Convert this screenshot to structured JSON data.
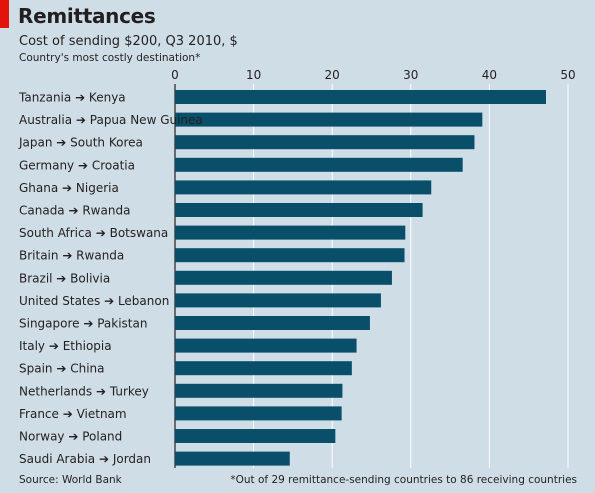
{
  "header": {
    "title": "Remittances",
    "subtitle": "Cost of sending $200, Q3 2010, $",
    "note": "Country's most costly destination*"
  },
  "footer": {
    "source": "Source: World Bank",
    "footnote": "*Out of 29 remittance-sending countries to 86 receiving countries"
  },
  "colors": {
    "background": "#cfdde6",
    "bar": "#0a4f6a",
    "accent": "#e3120b",
    "grid": "#ffffff"
  },
  "chart_data": {
    "type": "bar",
    "orientation": "horizontal",
    "categories": [
      "Tanzania ➔ Kenya",
      "Australia ➔ Papua New Guinea",
      "Japan ➔ South Korea",
      "Germany ➔ Croatia",
      "Ghana ➔ Nigeria",
      "Canada ➔ Rwanda",
      "South Africa ➔ Botswana",
      "Britain ➔ Rwanda",
      "Brazil ➔ Bolivia",
      "United States ➔ Lebanon",
      "Singapore ➔ Pakistan",
      "Italy ➔ Ethiopia",
      "Spain ➔ China",
      "Netherlands ➔ Turkey",
      "France ➔ Vietnam",
      "Norway ➔ Poland",
      "Saudi Arabia ➔ Jordan"
    ],
    "values": [
      47.2,
      39.1,
      38.1,
      36.6,
      32.6,
      31.5,
      29.3,
      29.2,
      27.6,
      26.2,
      24.8,
      23.1,
      22.5,
      21.3,
      21.2,
      20.4,
      14.6
    ],
    "xlim": [
      0,
      50
    ],
    "xticks": [
      0,
      10,
      20,
      30,
      40,
      50
    ],
    "axis_position": "top",
    "grid": true
  }
}
